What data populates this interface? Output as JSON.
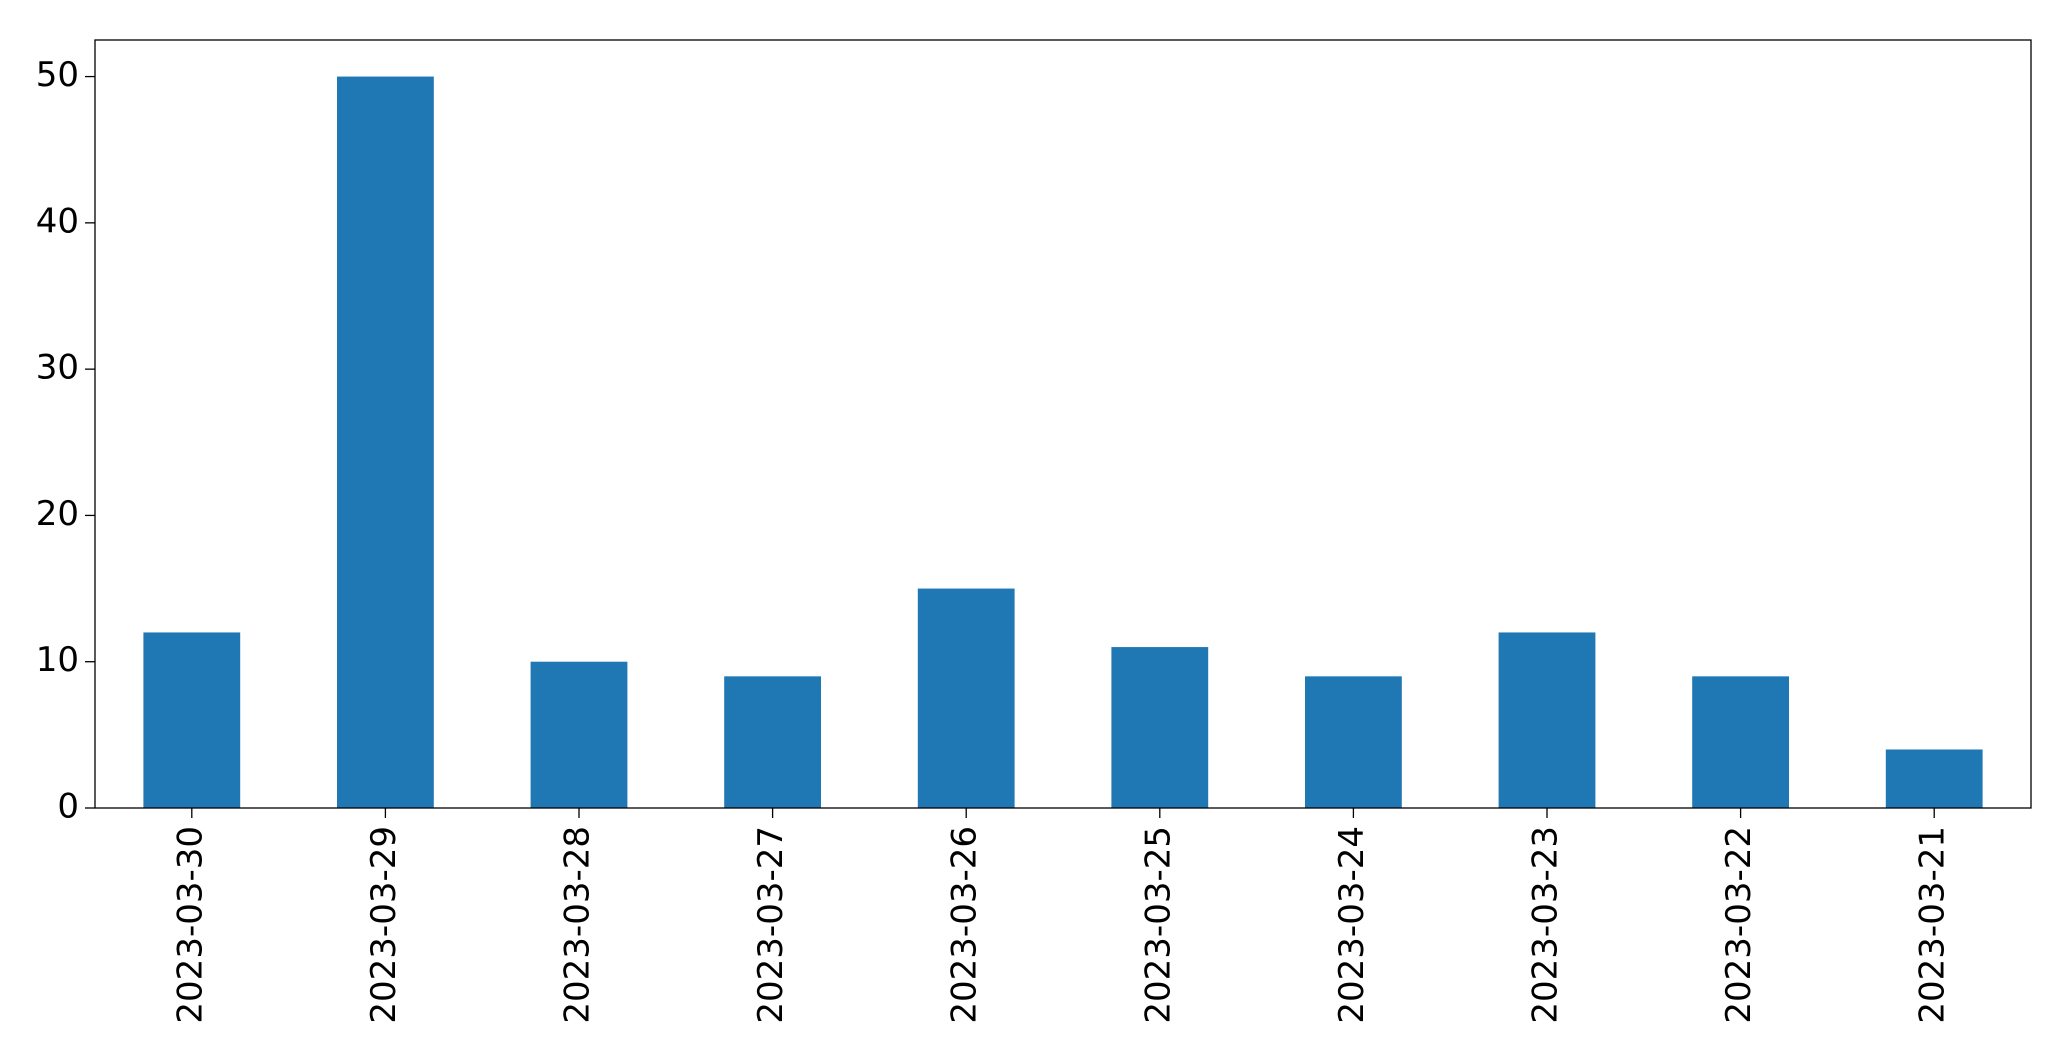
{
  "chart_data": {
    "type": "bar",
    "categories": [
      "2023-03-30",
      "2023-03-29",
      "2023-03-28",
      "2023-03-27",
      "2023-03-26",
      "2023-03-25",
      "2023-03-24",
      "2023-03-23",
      "2023-03-22",
      "2023-03-21"
    ],
    "values": [
      12,
      50,
      10,
      9,
      15,
      11,
      9,
      12,
      9,
      4
    ],
    "color": "#1f77b4",
    "ylim": [
      0,
      52.5
    ],
    "yticks": [
      0,
      10,
      20,
      30,
      40,
      50
    ],
    "grid": false
  }
}
